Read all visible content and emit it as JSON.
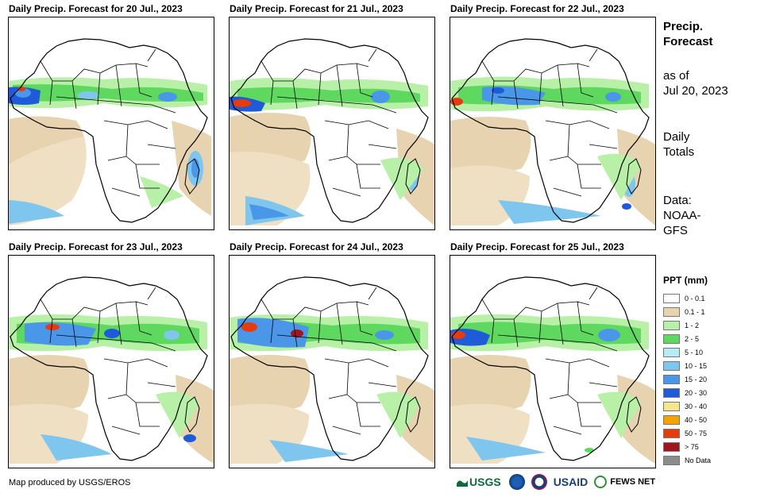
{
  "panels": [
    {
      "title": "Daily Precip. Forecast for 20 Jul., 2023"
    },
    {
      "title": "Daily Precip. Forecast for 21 Jul., 2023"
    },
    {
      "title": "Daily Precip. Forecast for 22 Jul., 2023"
    },
    {
      "title": "Daily Precip. Forecast for 23 Jul., 2023"
    },
    {
      "title": "Daily Precip. Forecast for 24 Jul., 2023"
    },
    {
      "title": "Daily Precip. Forecast for 25 Jul., 2023"
    }
  ],
  "sidebar": {
    "title_line1": "Precip.",
    "title_line2": "Forecast",
    "asof_line1": "as of",
    "asof_line2": "Jul 20, 2023",
    "totals_line1": "Daily",
    "totals_line2": "Totals",
    "data_line1": "Data:",
    "data_line2": "NOAA-",
    "data_line3": "GFS"
  },
  "legend": {
    "title": "PPT (mm)",
    "items": [
      {
        "label": "0 - 0.1",
        "color": "#ffffff"
      },
      {
        "label": "0.1 - 1",
        "color": "#e8d3b0"
      },
      {
        "label": "1 - 2",
        "color": "#b8f0a8"
      },
      {
        "label": "2 - 5",
        "color": "#5fd85f"
      },
      {
        "label": "5 - 10",
        "color": "#b5ecf5"
      },
      {
        "label": "10 - 15",
        "color": "#7fc6ee"
      },
      {
        "label": "15 - 20",
        "color": "#4a96e8"
      },
      {
        "label": "20 - 30",
        "color": "#1f5bd8"
      },
      {
        "label": "30 - 40",
        "color": "#f7e58a"
      },
      {
        "label": "40 - 50",
        "color": "#f5a300"
      },
      {
        "label": "50 - 75",
        "color": "#e63b0c"
      },
      {
        "label": "> 75",
        "color": "#a0161e"
      },
      {
        "label": "No Data",
        "color": "#8c8c8c"
      }
    ]
  },
  "footer": {
    "credit": "Map produced by USGS/EROS",
    "logos": {
      "usgs": "USGS",
      "usaid": "USAID",
      "fews": "FEWS NET"
    }
  }
}
